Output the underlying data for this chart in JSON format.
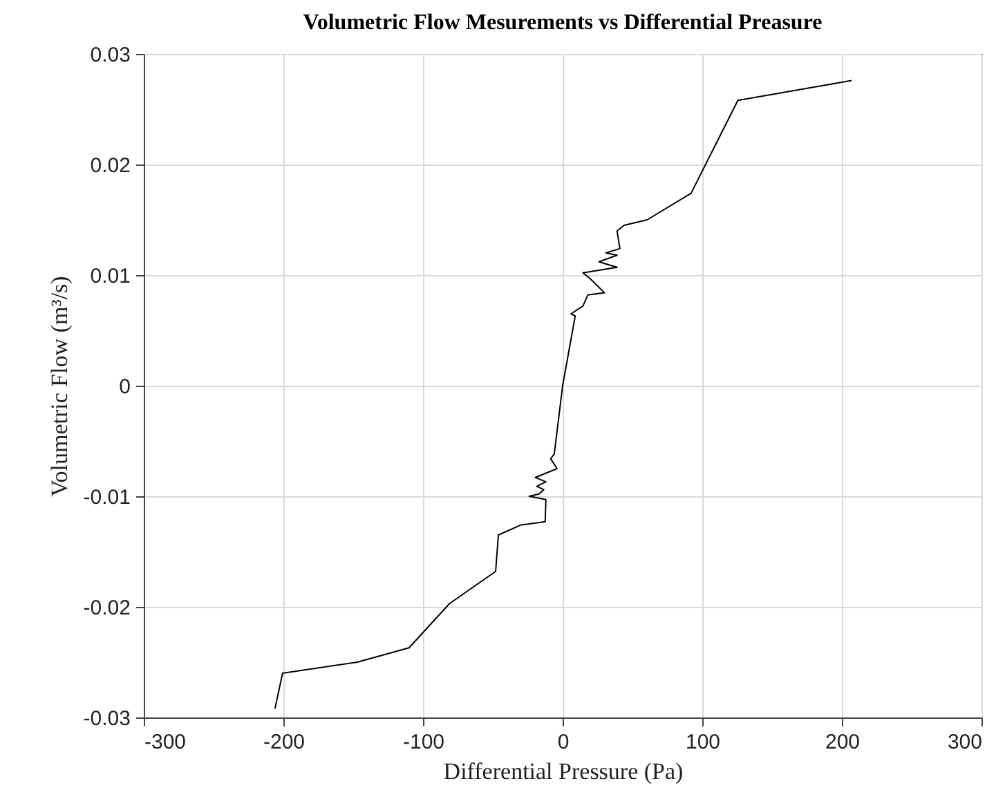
{
  "chart_data": {
    "type": "line",
    "title": "Volumetric Flow Mesurements vs Differential Preasure",
    "xlabel": "Differential Pressure (Pa)",
    "ylabel": "Volumetric Flow (m³/s)",
    "x": [
      -206,
      -200.6,
      -147,
      -110,
      -81,
      -48,
      -46,
      -30,
      -12.5,
      -12,
      -24,
      -17,
      -13.5,
      -18.5,
      -12,
      -19.5,
      -4,
      -8.6,
      -6,
      0,
      9,
      6,
      14.5,
      18,
      30,
      19.5,
      14.5,
      39,
      26,
      39,
      31,
      41,
      39,
      44,
      60.6,
      92,
      125.5,
      207
    ],
    "series": [
      {
        "color": "#000000",
        "values": [
          -0.0292,
          -0.026,
          -0.025,
          -0.0237,
          -0.0197,
          -0.0168,
          -0.0135,
          -0.0126,
          -0.0123,
          -0.0103,
          -0.01,
          -0.0098,
          -0.0094,
          -0.0091,
          -0.0087,
          -0.0083,
          -0.0075,
          -0.0066,
          -0.0062,
          0,
          0.0063,
          0.0065,
          0.0072,
          0.0082,
          0.0084,
          0.0097,
          0.0102,
          0.0107,
          0.0112,
          0.0118,
          0.012,
          0.0124,
          0.014,
          0.0145,
          0.015,
          0.0174,
          0.0258,
          0.0276
        ]
      }
    ],
    "xlim": [
      -300,
      300
    ],
    "xticks": [
      -300,
      -200,
      -100,
      0,
      100,
      200,
      300
    ],
    "ylim": [
      -0.03,
      0.03
    ],
    "yticks": [
      -0.03,
      -0.02,
      -0.01,
      0,
      0.01,
      0.02,
      0.03
    ],
    "grid": true
  }
}
